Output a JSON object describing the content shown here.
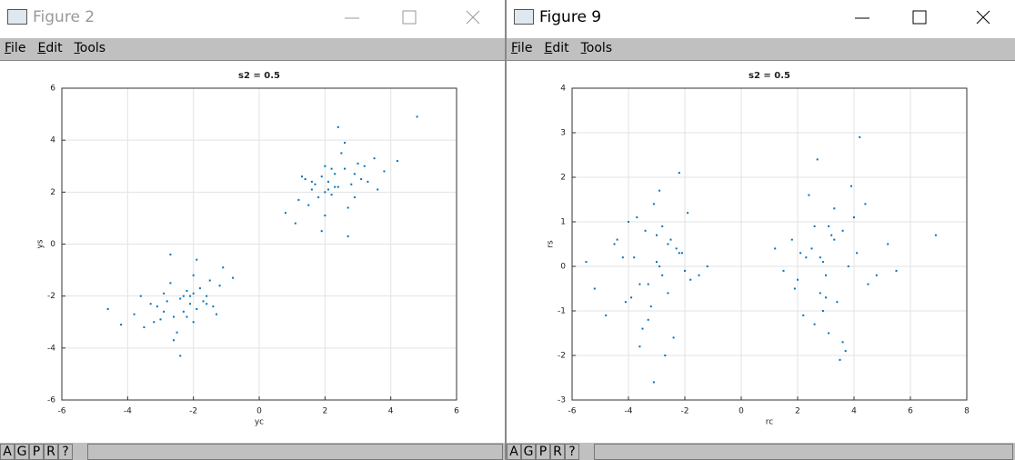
{
  "windows": [
    {
      "title": "Figure 2",
      "menu": [
        "File",
        "Edit",
        "Tools"
      ],
      "toolbar": [
        "A",
        "G",
        "P",
        "R",
        "?"
      ]
    },
    {
      "title": "Figure 9",
      "menu": [
        "File",
        "Edit",
        "Tools"
      ],
      "toolbar": [
        "A",
        "G",
        "P",
        "R",
        "?"
      ]
    }
  ],
  "chart_data": [
    {
      "type": "scatter",
      "title": "s2 = 0.5",
      "x_label": "yc",
      "y_label": "ys",
      "color": "#0072bd",
      "grid": true,
      "xlim": [
        -6,
        6
      ],
      "ylim": [
        -6,
        6
      ],
      "xticks": [
        -6,
        -4,
        -2,
        0,
        2,
        4,
        6
      ],
      "yticks": [
        -6,
        -4,
        -2,
        0,
        2,
        4,
        6
      ],
      "x": [
        -2.3,
        -1.8,
        -2.9,
        -2.1,
        -3.2,
        -1.5,
        -2.6,
        -2.0,
        -1.2,
        -3.5,
        -2.4,
        -1.9,
        -2.8,
        -2.2,
        -3.0,
        -1.6,
        -2.5,
        -2.7,
        -1.4,
        -3.8,
        -2.0,
        -2.3,
        -1.1,
        -3.3,
        -2.6,
        -1.7,
        -2.9,
        -2.1,
        -0.8,
        -4.2,
        -2.4,
        -1.9,
        -3.1,
        -2.2,
        -1.3,
        -2.7,
        -3.6,
        -2.0,
        -1.6,
        -4.6,
        2.3,
        1.8,
        2.9,
        2.1,
        3.2,
        1.5,
        2.6,
        2.0,
        1.2,
        3.5,
        2.4,
        1.9,
        2.8,
        2.2,
        3.0,
        1.6,
        2.5,
        2.7,
        1.4,
        3.8,
        2.0,
        2.3,
        1.1,
        3.3,
        2.6,
        1.7,
        2.9,
        2.1,
        0.8,
        4.2,
        2.4,
        1.9,
        3.1,
        2.2,
        1.3,
        2.7,
        3.6,
        2.0,
        1.6,
        4.8
      ],
      "values": [
        -2.0,
        -1.7,
        -2.6,
        -2.3,
        -3.0,
        -1.4,
        -2.8,
        -1.9,
        -1.6,
        -3.2,
        -2.1,
        -2.5,
        -2.2,
        -1.8,
        -2.9,
        -2.0,
        -3.4,
        -1.5,
        -2.4,
        -2.7,
        -1.2,
        -2.6,
        -0.9,
        -2.3,
        -3.7,
        -2.2,
        -1.9,
        -2.0,
        -1.3,
        -3.1,
        -4.3,
        -0.6,
        -2.4,
        -2.8,
        -2.7,
        -0.4,
        -2.0,
        -3.0,
        -2.3,
        -2.5,
        2.2,
        1.8,
        2.7,
        2.4,
        3.0,
        1.5,
        2.9,
        2.0,
        1.7,
        3.3,
        2.2,
        2.6,
        2.3,
        1.9,
        3.1,
        2.1,
        3.5,
        1.4,
        2.5,
        2.8,
        1.1,
        2.7,
        0.8,
        2.4,
        3.9,
        2.3,
        1.8,
        2.1,
        1.2,
        3.2,
        4.5,
        0.5,
        2.5,
        2.9,
        2.6,
        0.3,
        2.1,
        3.0,
        2.4,
        4.9
      ]
    },
    {
      "type": "scatter",
      "title": "s2 = 0.5",
      "x_label": "rc",
      "y_label": "rs",
      "color": "#0072bd",
      "grid": true,
      "xlim": [
        -6,
        8
      ],
      "ylim": [
        -3,
        4
      ],
      "xticks": [
        -6,
        -4,
        -2,
        0,
        2,
        4,
        6,
        8
      ],
      "yticks": [
        -3,
        -2,
        -1,
        0,
        1,
        2,
        3,
        4
      ],
      "x": [
        -3.0,
        -2.5,
        -3.6,
        -2.8,
        -4.1,
        -2.2,
        -3.3,
        -2.9,
        -1.8,
        -4.5,
        -3.1,
        -2.6,
        -3.8,
        -2.4,
        -3.4,
        -2.0,
        -3.2,
        -3.7,
        -2.3,
        -5.2,
        -2.7,
        -3.0,
        -1.5,
        -4.0,
        -3.5,
        -2.1,
        -3.9,
        -2.9,
        -1.2,
        -4.8,
        -3.1,
        -2.6,
        -4.2,
        -3.3,
        -1.9,
        -3.6,
        -4.4,
        -2.8,
        -2.2,
        -5.5,
        3.0,
        2.5,
        3.6,
        2.8,
        4.1,
        2.2,
        3.3,
        2.9,
        1.8,
        4.5,
        3.1,
        2.6,
        3.8,
        2.4,
        3.4,
        2.0,
        3.2,
        3.7,
        2.3,
        5.2,
        2.7,
        3.0,
        1.5,
        4.0,
        3.5,
        2.1,
        3.9,
        2.9,
        1.2,
        4.8,
        3.1,
        2.6,
        4.2,
        3.3,
        1.9,
        3.6,
        4.4,
        2.8,
        6.9,
        5.5
      ],
      "values": [
        0.1,
        0.6,
        -0.4,
        0.9,
        -0.8,
        0.3,
        -1.2,
        0.0,
        -0.3,
        0.5,
        1.4,
        -0.6,
        0.2,
        -1.6,
        0.8,
        -0.1,
        -0.9,
        1.1,
        0.4,
        -0.5,
        -2.0,
        0.7,
        -0.2,
        1.0,
        -1.4,
        0.3,
        -0.7,
        1.7,
        0.0,
        -1.1,
        -2.6,
        0.5,
        0.2,
        -0.4,
        1.2,
        -1.8,
        0.6,
        -0.2,
        2.1,
        0.1,
        -0.2,
        0.4,
        0.8,
        -0.6,
        0.3,
        -1.1,
        1.3,
        0.1,
        0.6,
        -0.4,
        -1.5,
        0.9,
        0.0,
        1.6,
        -0.8,
        -0.3,
        0.7,
        -1.9,
        0.2,
        0.5,
        2.4,
        -0.7,
        -0.1,
        1.1,
        -2.1,
        0.3,
        1.8,
        -1.0,
        0.4,
        -0.2,
        0.9,
        -1.3,
        2.9,
        0.6,
        -0.5,
        -1.7,
        1.4,
        0.2,
        0.7,
        -0.1
      ]
    }
  ]
}
